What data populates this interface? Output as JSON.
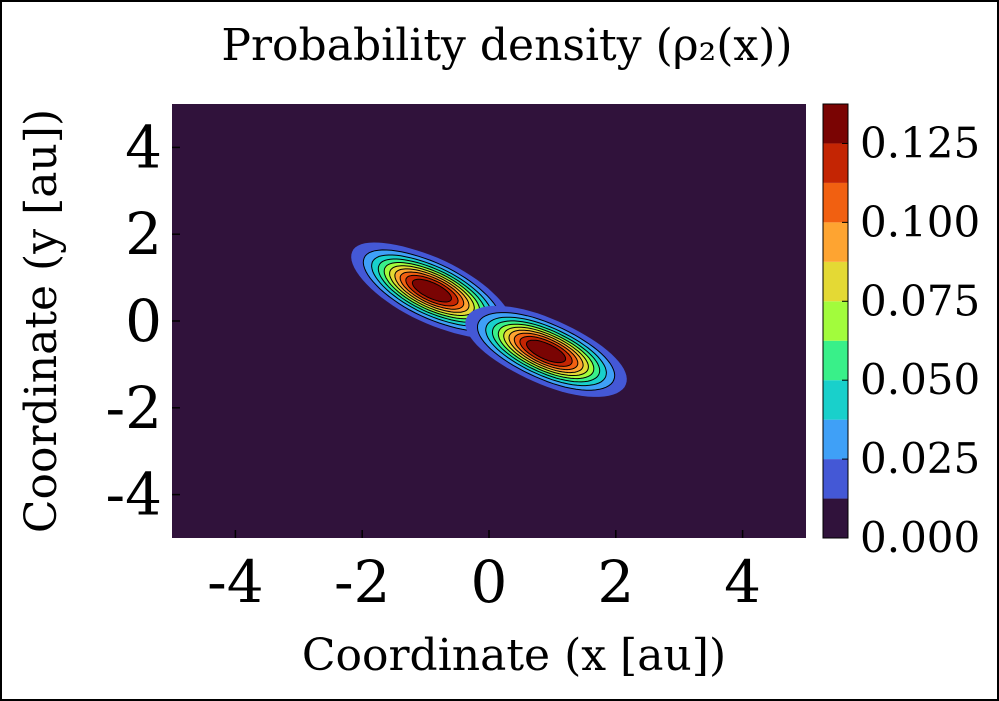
{
  "chart_data": {
    "type": "contour",
    "title": "Probability density (ρ₂(x))",
    "xlabel": "Coordinate (x [au])",
    "ylabel": "Coordinate (y [au])",
    "xlim": [
      -5,
      5
    ],
    "ylim": [
      -5,
      5
    ],
    "x_ticks": [
      "-4",
      "-2",
      "0",
      "2",
      "4"
    ],
    "y_ticks": [
      "4",
      "2",
      "0",
      "-2",
      "-4"
    ],
    "colorbar": {
      "min": 0.0,
      "max": 0.1375,
      "ticks": [
        "0.000",
        "0.025",
        "0.050",
        "0.075",
        "0.100",
        "0.125"
      ],
      "levels": [
        0,
        0.0125,
        0.025,
        0.0375,
        0.05,
        0.0625,
        0.075,
        0.0875,
        0.1,
        0.1125,
        0.125,
        0.1375
      ],
      "colors": [
        "#30123b",
        "#4458d6",
        "#3fa0f7",
        "#19d0cb",
        "#39f089",
        "#a2fc3c",
        "#e4d934",
        "#fea431",
        "#f16011",
        "#c42503",
        "#7a0403"
      ]
    },
    "density_peaks": [
      {
        "x": -0.9,
        "y": 0.7,
        "peak": 0.14
      },
      {
        "x": 0.9,
        "y": -0.7,
        "peak": 0.14
      }
    ],
    "grid": false
  }
}
